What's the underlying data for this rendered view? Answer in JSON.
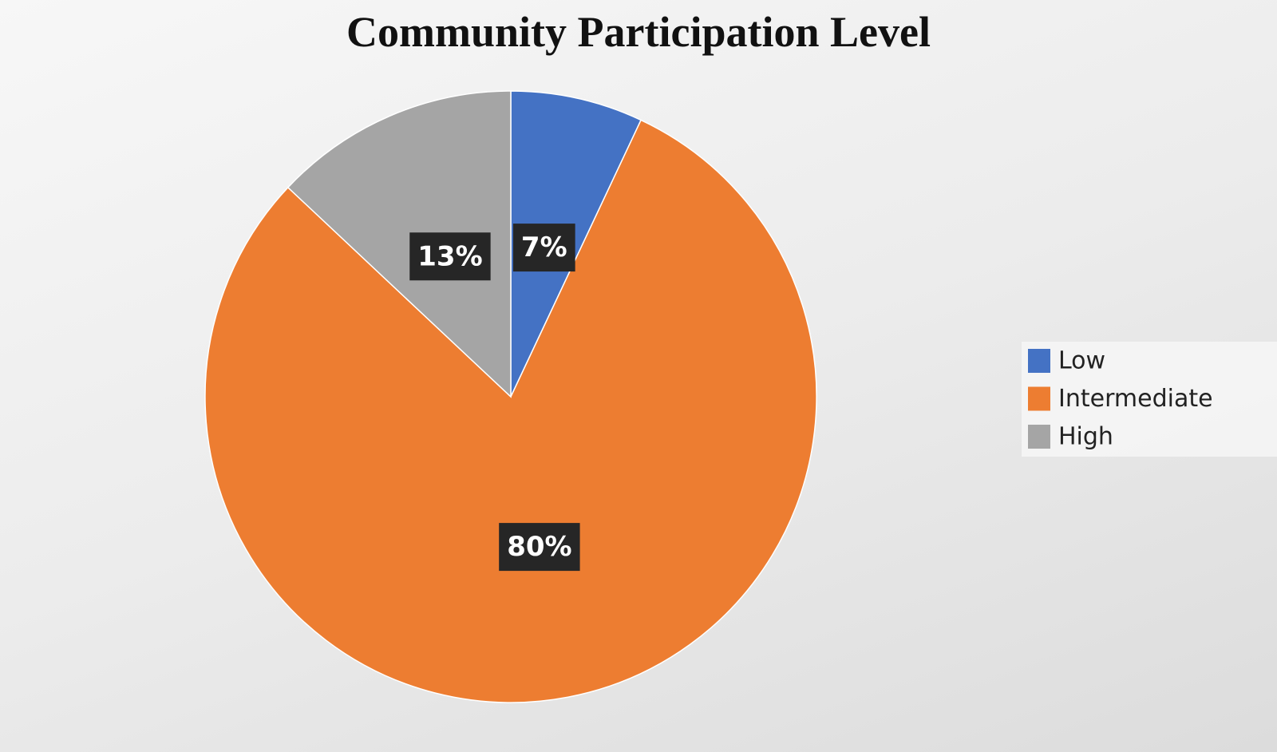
{
  "chart_data": {
    "type": "pie",
    "title": "Community Participation Level",
    "categories": [
      "Low",
      "Intermediate",
      "High"
    ],
    "values": [
      7,
      80,
      13
    ],
    "value_labels": [
      "7%",
      "80%",
      "13%"
    ],
    "colors": [
      "#4472c4",
      "#ed7d31",
      "#a5a5a5"
    ],
    "legend": "right"
  }
}
